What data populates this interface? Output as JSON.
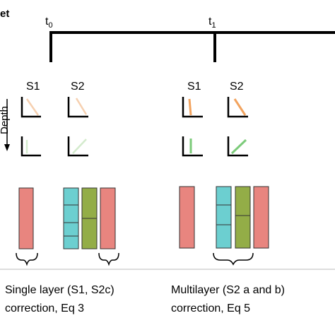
{
  "header": {
    "partial_title": "et"
  },
  "timeline": {
    "t0": "t",
    "t0_sub": "0",
    "t1": "t",
    "t1_sub": "1"
  },
  "axis": {
    "depth_label": "Depth"
  },
  "sites": {
    "left": {
      "s1": "S1",
      "s2": "S2"
    },
    "right": {
      "s1": "S1",
      "s2": "S2"
    }
  },
  "captions": {
    "single_line1": "Single layer (S1, S2c)",
    "single_line2": "correction, Eq 3",
    "multi_line1": "Multilayer (S2 a and b)",
    "multi_line2": "correction, Eq 5"
  },
  "colors": {
    "pink": "#e8857f",
    "teal": "#6ccfd0",
    "olive": "#93ad47",
    "orange_faded": "#f6d0b0",
    "orange": "#f2a35e",
    "green_faded": "#d4ebcd",
    "green": "#7ccb7a"
  }
}
